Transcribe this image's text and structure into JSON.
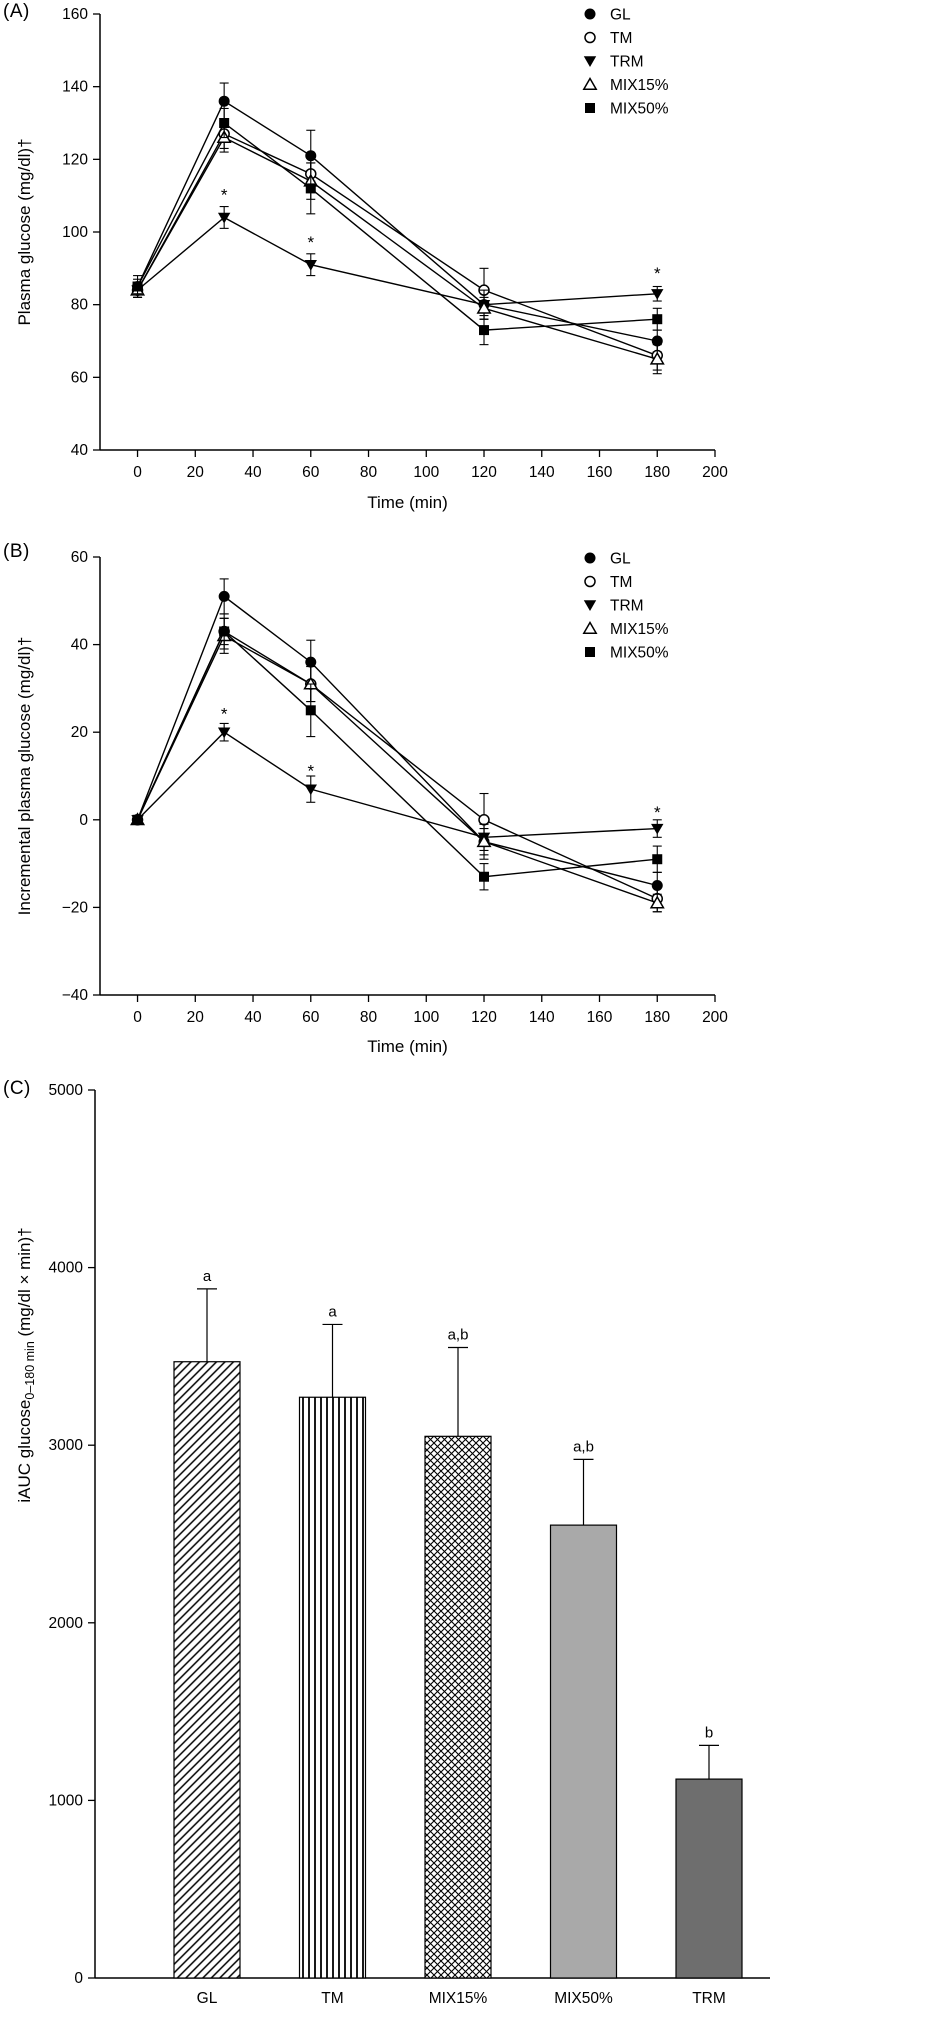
{
  "chart_data": [
    {
      "label": "(A)",
      "type": "line",
      "xlabel": "Time (min)",
      "ylabel": "Plasma glucose (mg/dl)†",
      "xlim": [
        -13,
        200
      ],
      "ylim": [
        40,
        160
      ],
      "xticks": [
        0,
        20,
        40,
        60,
        80,
        100,
        120,
        140,
        160,
        180,
        200
      ],
      "yticks": [
        40,
        60,
        80,
        100,
        120,
        140,
        160
      ],
      "x": [
        0,
        30,
        60,
        120,
        180
      ],
      "legend_position": "top-right",
      "series": [
        {
          "name": "GL",
          "marker": "circle-filled",
          "values": [
            85,
            136,
            121,
            80,
            70
          ],
          "errors": [
            3,
            5,
            7,
            4,
            3
          ]
        },
        {
          "name": "TM",
          "marker": "circle-open",
          "values": [
            84,
            127,
            116,
            84,
            66
          ],
          "errors": [
            2,
            4,
            5,
            6,
            4
          ]
        },
        {
          "name": "TRM",
          "marker": "triangle-down-filled",
          "values": [
            84,
            104,
            91,
            80,
            83
          ],
          "errors": [
            2,
            3,
            3,
            4,
            2
          ]
        },
        {
          "name": "MIX15%",
          "marker": "triangle-up-open",
          "values": [
            84,
            126,
            114,
            79,
            65
          ],
          "errors": [
            2,
            4,
            5,
            3,
            4
          ]
        },
        {
          "name": "MIX50%",
          "marker": "square-filled",
          "values": [
            85,
            130,
            112,
            73,
            76
          ],
          "errors": [
            2,
            4,
            7,
            4,
            3
          ]
        }
      ],
      "annotations": [
        {
          "text": "*",
          "x": 30,
          "y": 110
        },
        {
          "text": "*",
          "x": 60,
          "y": 97
        },
        {
          "text": "*",
          "x": 180,
          "y": 88.5
        }
      ]
    },
    {
      "label": "(B)",
      "type": "line",
      "xlabel": "Time (min)",
      "ylabel": "Incremental plasma glucose (mg/dl)†",
      "xlim": [
        -13,
        200
      ],
      "ylim": [
        -40,
        60
      ],
      "xticks": [
        0,
        20,
        40,
        60,
        80,
        100,
        120,
        140,
        160,
        180,
        200
      ],
      "yticks": [
        -40,
        -20,
        0,
        20,
        40,
        60
      ],
      "x": [
        0,
        30,
        60,
        120,
        180
      ],
      "legend_position": "top-right",
      "series": [
        {
          "name": "GL",
          "marker": "circle-filled",
          "values": [
            0,
            51,
            36,
            -5,
            -15
          ],
          "errors": [
            0,
            4,
            5,
            4,
            3
          ]
        },
        {
          "name": "TM",
          "marker": "circle-open",
          "values": [
            0,
            43,
            31,
            0,
            -18
          ],
          "errors": [
            0,
            4,
            4,
            6,
            3
          ]
        },
        {
          "name": "TRM",
          "marker": "triangle-down-filled",
          "values": [
            0,
            20,
            7,
            -4,
            -2
          ],
          "errors": [
            0,
            2,
            3,
            3,
            2
          ]
        },
        {
          "name": "MIX15%",
          "marker": "triangle-up-open",
          "values": [
            0,
            42,
            31,
            -5,
            -19
          ],
          "errors": [
            0,
            4,
            4,
            3,
            2
          ]
        },
        {
          "name": "MIX50%",
          "marker": "square-filled",
          "values": [
            0,
            43,
            25,
            -13,
            -9
          ],
          "errors": [
            0,
            3,
            6,
            3,
            3
          ]
        }
      ],
      "annotations": [
        {
          "text": "*",
          "x": 30,
          "y": 24
        },
        {
          "text": "*",
          "x": 60,
          "y": 11
        },
        {
          "text": "*",
          "x": 180,
          "y": 1.5
        }
      ]
    },
    {
      "label": "(C)",
      "type": "bar",
      "ylabel_parts": {
        "main": "iAUC glucose",
        "sub": "0–180 min",
        "rest": " (mg/dl × min)†"
      },
      "ylim": [
        0,
        5000
      ],
      "yticks": [
        0,
        1000,
        2000,
        3000,
        4000,
        5000
      ],
      "categories": [
        "GL",
        "TM",
        "MIX15%",
        "MIX50%",
        "TRM"
      ],
      "values": [
        3470,
        3270,
        3050,
        2550,
        1120
      ],
      "errors": [
        410,
        410,
        500,
        370,
        190
      ],
      "sig_labels": [
        "a",
        "a",
        "a,b",
        "a,b",
        "b"
      ],
      "fills": [
        "diagonal",
        "vertical",
        "crosshatch",
        "solid-light",
        "solid-dark"
      ],
      "colors": {
        "solid_light": "#a9a9a9",
        "solid_dark": "#6e6e6e",
        "stroke": "#000000",
        "background": "#ffffff"
      }
    }
  ]
}
